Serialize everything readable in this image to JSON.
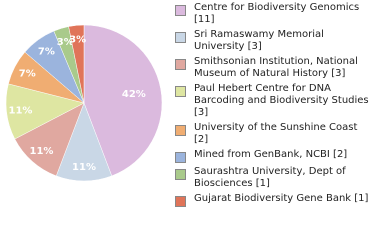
{
  "chart_data": {
    "type": "pie",
    "categories": [
      "Centre for Biodiversity Genomics [11]",
      "Sri Ramaswamy Memorial University [3]",
      "Smithsonian Institution, National Museum of Natural History [3]",
      "Paul Hebert Centre for DNA Barcoding and Biodiversity Studies [3]",
      "University of the Sunshine Coast [2]",
      "Mined from GenBank, NCBI [2]",
      "Saurashtra University, Dept of Biosciences [1]",
      "Gujarat Biodiversity Gene Bank [1]"
    ],
    "values": [
      42,
      11,
      11,
      11,
      7,
      7,
      3,
      3
    ],
    "value_labels": [
      "42%",
      "11%",
      "11%",
      "11%",
      "7%",
      "7%",
      "3%",
      "3%"
    ],
    "colors": [
      "#dbbade",
      "#c9d7e6",
      "#e0a8a0",
      "#dee6a2",
      "#f0ad72",
      "#9bb4dd",
      "#a9ca8b",
      "#e07459"
    ]
  }
}
